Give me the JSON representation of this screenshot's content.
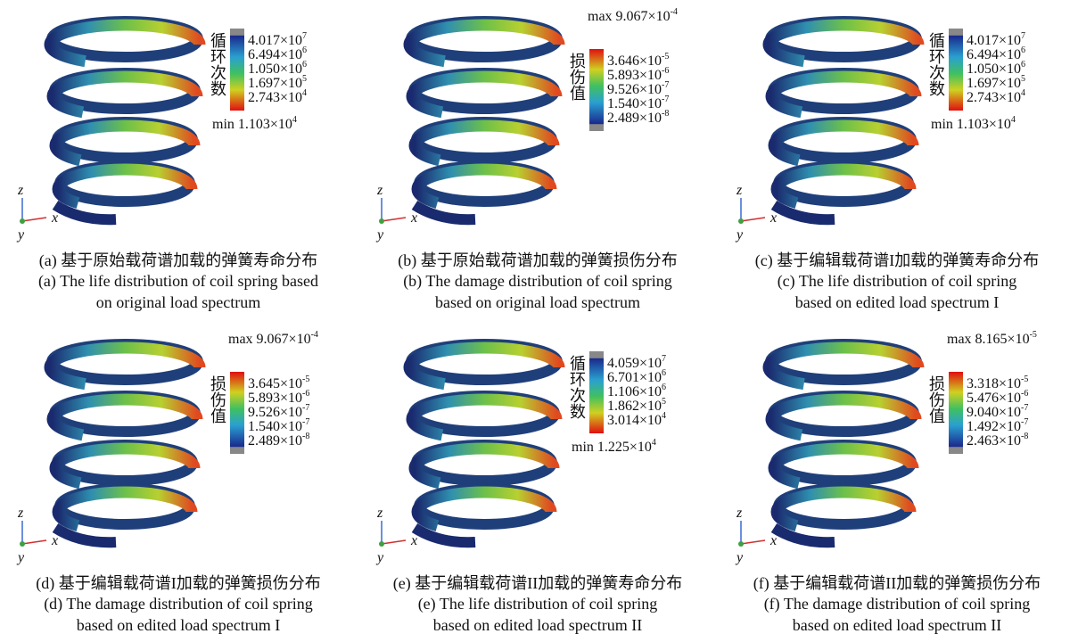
{
  "axes": {
    "z": "z",
    "x": "x",
    "y": "y"
  },
  "panels": [
    {
      "kind": "life",
      "legend_title": "循环次数",
      "levels": [
        {
          "mantissa": "4.017×10",
          "exp": "7"
        },
        {
          "mantissa": "6.494×10",
          "exp": "6"
        },
        {
          "mantissa": "1.050×10",
          "exp": "6"
        },
        {
          "mantissa": "1.697×10",
          "exp": "5"
        },
        {
          "mantissa": "2.743×10",
          "exp": "4"
        }
      ],
      "extreme": {
        "prefix": "min",
        "mantissa": "1.103×10",
        "exp": "4"
      },
      "caption_cn": "(a) 基于原始载荷谱加载的弹簧寿命分布",
      "caption_en": [
        "(a) The life distribution of coil spring based",
        "on original load spectrum"
      ]
    },
    {
      "kind": "damage",
      "legend_title": "损伤值",
      "levels": [
        {
          "mantissa": "3.646×10",
          "exp": "-5"
        },
        {
          "mantissa": "5.893×10",
          "exp": "-6"
        },
        {
          "mantissa": "9.526×10",
          "exp": "-7"
        },
        {
          "mantissa": "1.540×10",
          "exp": "-7"
        },
        {
          "mantissa": "2.489×10",
          "exp": "-8"
        }
      ],
      "extreme": {
        "prefix": "max",
        "mantissa": "9.067×10",
        "exp": "-4"
      },
      "caption_cn": "(b) 基于原始载荷谱加载的弹簧损伤分布",
      "caption_en": [
        "(b) The damage distribution of coil spring",
        "based on original load spectrum"
      ]
    },
    {
      "kind": "life",
      "legend_title": "循环次数",
      "levels": [
        {
          "mantissa": "4.017×10",
          "exp": "7"
        },
        {
          "mantissa": "6.494×10",
          "exp": "6"
        },
        {
          "mantissa": "1.050×10",
          "exp": "6"
        },
        {
          "mantissa": "1.697×10",
          "exp": "5"
        },
        {
          "mantissa": "2.743×10",
          "exp": "4"
        }
      ],
      "extreme": {
        "prefix": "min",
        "mantissa": "1.103×10",
        "exp": "4"
      },
      "caption_cn": "(c) 基于编辑载荷谱I加载的弹簧寿命分布",
      "caption_en": [
        "(c) The life distribution of coil spring",
        "based on edited load spectrum I"
      ]
    },
    {
      "kind": "damage",
      "legend_title": "损伤值",
      "levels": [
        {
          "mantissa": "3.645×10",
          "exp": "-5"
        },
        {
          "mantissa": "5.893×10",
          "exp": "-6"
        },
        {
          "mantissa": "9.526×10",
          "exp": "-7"
        },
        {
          "mantissa": "1.540×10",
          "exp": "-7"
        },
        {
          "mantissa": "2.489×10",
          "exp": "-8"
        }
      ],
      "extreme": {
        "prefix": "max",
        "mantissa": "9.067×10",
        "exp": "-4"
      },
      "caption_cn": "(d) 基于编辑载荷谱I加载的弹簧损伤分布",
      "caption_en": [
        "(d) The damage distribution of coil spring",
        "based on edited load spectrum I"
      ]
    },
    {
      "kind": "life",
      "legend_title": "循环次数",
      "levels": [
        {
          "mantissa": "4.059×10",
          "exp": "7"
        },
        {
          "mantissa": "6.701×10",
          "exp": "6"
        },
        {
          "mantissa": "1.106×10",
          "exp": "6"
        },
        {
          "mantissa": "1.862×10",
          "exp": "5"
        },
        {
          "mantissa": "3.014×10",
          "exp": "4"
        }
      ],
      "extreme": {
        "prefix": "min",
        "mantissa": "1.225×10",
        "exp": "4"
      },
      "caption_cn": "(e) 基于编辑载荷谱II加载的弹簧寿命分布",
      "caption_en": [
        "(e) The life distribution of coil spring",
        "based on edited load spectrum II"
      ]
    },
    {
      "kind": "damage",
      "legend_title": "损伤值",
      "levels": [
        {
          "mantissa": "3.318×10",
          "exp": "-5"
        },
        {
          "mantissa": "5.476×10",
          "exp": "-6"
        },
        {
          "mantissa": "9.040×10",
          "exp": "-7"
        },
        {
          "mantissa": "1.492×10",
          "exp": "-7"
        },
        {
          "mantissa": "2.463×10",
          "exp": "-8"
        }
      ],
      "extreme": {
        "prefix": "max",
        "mantissa": "8.165×10",
        "exp": "-5"
      },
      "caption_cn": "(f) 基于编辑载荷谱II加载的弹簧损伤分布",
      "caption_en": [
        "(f) The damage distribution of coil spring",
        "based on edited load spectrum II"
      ]
    }
  ]
}
